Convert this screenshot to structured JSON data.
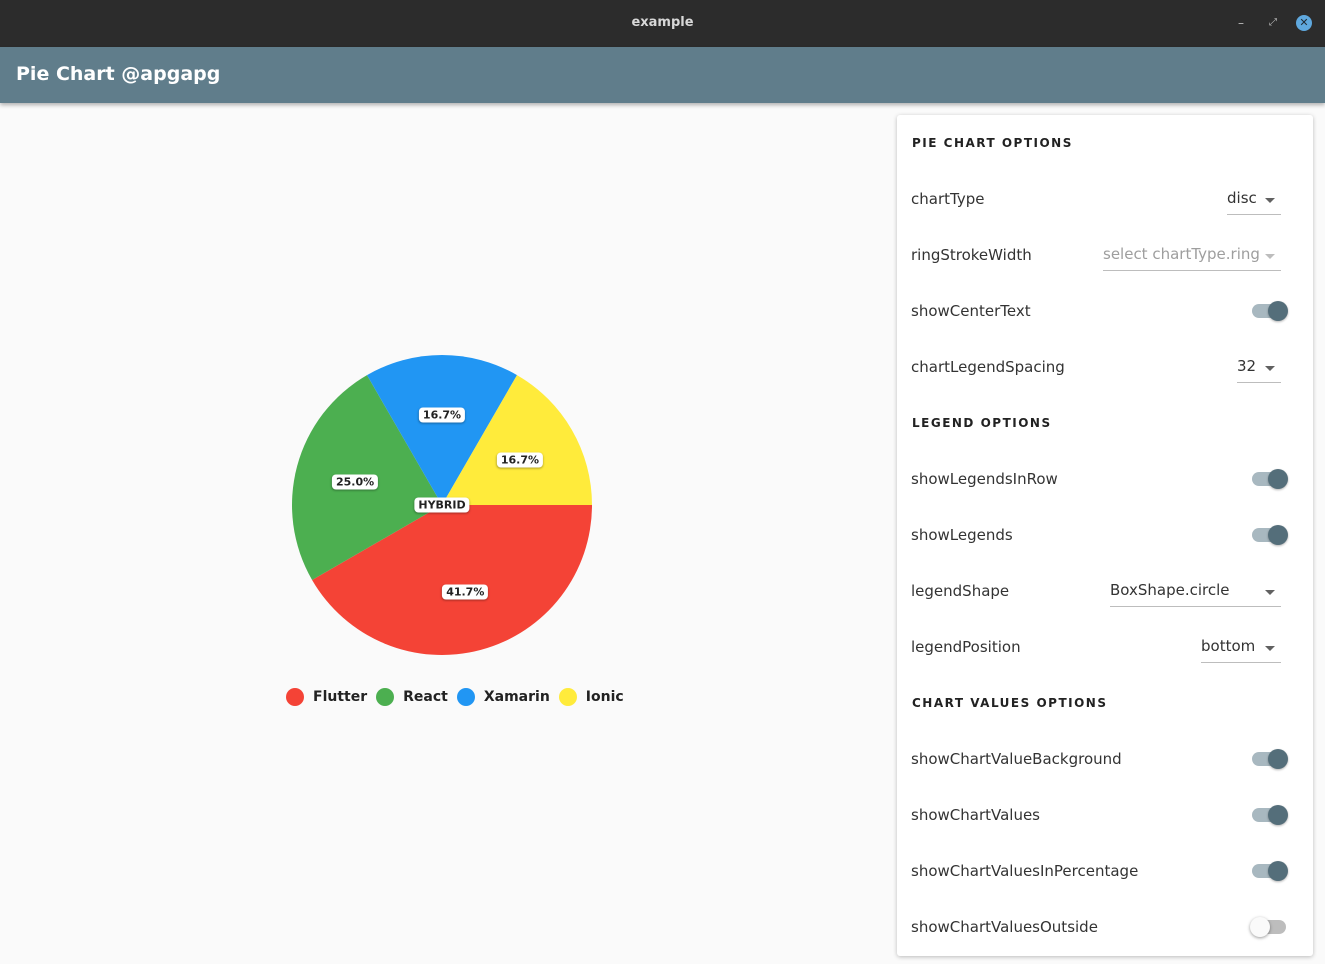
{
  "window": {
    "title": "example",
    "minimize": "–",
    "maximize": "⤢",
    "close": "✕"
  },
  "appbar": {
    "title": "Pie Chart @apgapg"
  },
  "chart_data": {
    "type": "pie",
    "center_text": "HYBRID",
    "categories": [
      "Flutter",
      "React",
      "Xamarin",
      "Ionic"
    ],
    "values": [
      5,
      3,
      2,
      2
    ],
    "percent_labels": [
      "41.7%",
      "25.0%",
      "16.7%",
      "16.7%"
    ],
    "colors": [
      "#f44336",
      "#4caf50",
      "#2196f3",
      "#ffeb3b"
    ],
    "legend_position": "bottom"
  },
  "panel": {
    "sections": {
      "pie": "PIE CHART OPTIONS",
      "legend": "LEGEND OPTIONS",
      "values": "CHART VALUES OPTIONS"
    },
    "chartType": {
      "label": "chartType",
      "value": "disc"
    },
    "ringStrokeWidth": {
      "label": "ringStrokeWidth",
      "value": "select chartType.ring"
    },
    "showCenterText": {
      "label": "showCenterText",
      "on": true
    },
    "chartLegendSpacing": {
      "label": "chartLegendSpacing",
      "value": "32"
    },
    "showLegendsInRow": {
      "label": "showLegendsInRow",
      "on": true
    },
    "showLegends": {
      "label": "showLegends",
      "on": true
    },
    "legendShape": {
      "label": "legendShape",
      "value": "BoxShape.circle"
    },
    "legendPosition": {
      "label": "legendPosition",
      "value": "bottom"
    },
    "showChartValueBackground": {
      "label": "showChartValueBackground",
      "on": true
    },
    "showChartValues": {
      "label": "showChartValues",
      "on": true
    },
    "showChartValuesInPercentage": {
      "label": "showChartValuesInPercentage",
      "on": true
    },
    "showChartValuesOutside": {
      "label": "showChartValuesOutside",
      "on": false
    }
  }
}
